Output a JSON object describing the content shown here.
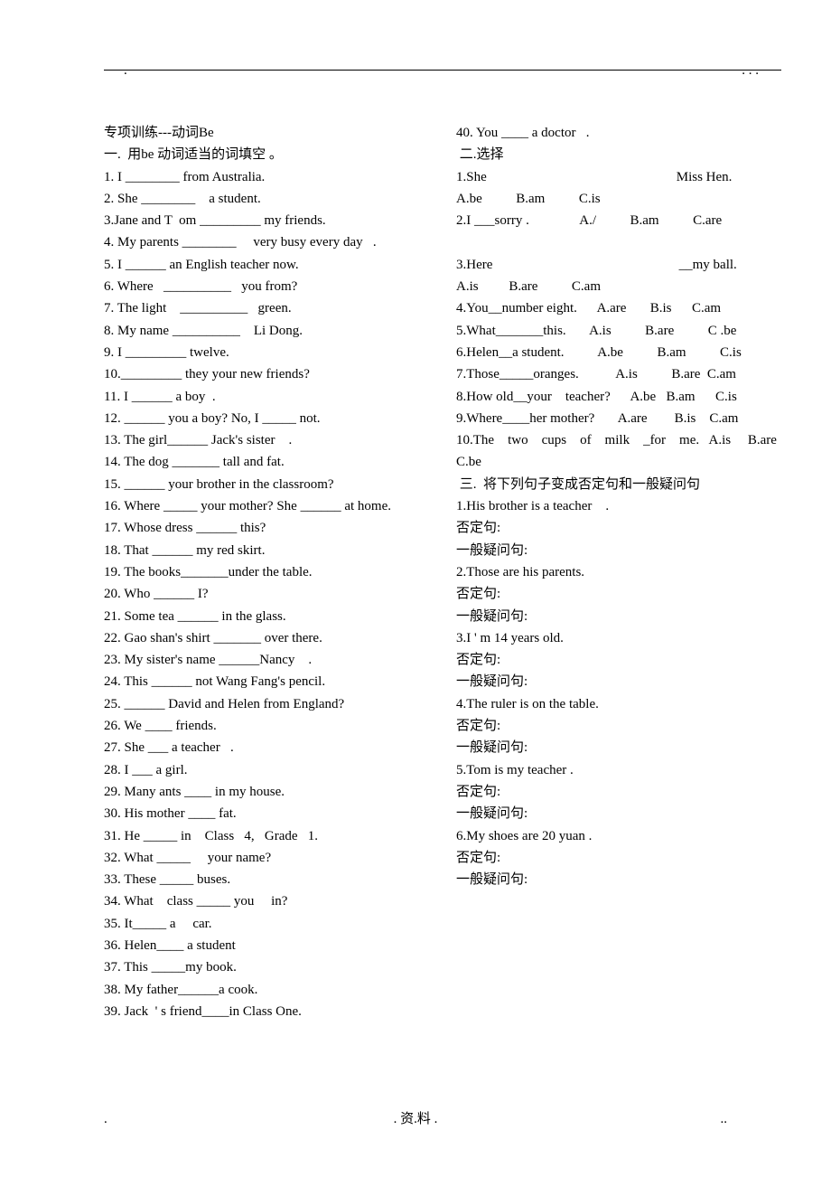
{
  "header": {
    "dot_left": ".",
    "dot_right": ".   . ."
  },
  "left_column": {
    "title": "专项训练---动词Be",
    "section1_title": "一.  用be 动词适当的词填空 。",
    "items": [
      "1. I ________ from Australia.",
      "2. She ________    a student.",
      "3.Jane and T  om _________ my friends.",
      "4. My parents ________     very busy every day   .",
      "5. I ______ an English teacher now.",
      "6. Where   __________   you from?",
      "7. The light    __________   green.",
      "8. My name __________    Li Dong.",
      "9. I _________ twelve.",
      "10._________ they your new friends?",
      "11. I ______ a boy  .",
      "12. ______ you a boy? No, I _____ not.",
      "13. The girl______ Jack's sister    .",
      "14. The dog _______ tall and fat.",
      "15. ______ your brother in the classroom?",
      "16. Where _____ your mother? She ______ at home.",
      "17. Whose dress ______ this?",
      "18. That ______ my red skirt.",
      "19. The books_______under the table.",
      "20. Who ______ I?",
      "21. Some tea ______ in the glass.",
      "22. Gao shan's shirt _______ over there.",
      "23. My sister's name ______Nancy    .",
      "24. This ______ not Wang Fang's pencil.",
      "25. ______ David and Helen from England?",
      "26. We ____ friends.",
      "27. She ___ a teacher   .",
      "28. I ___ a girl.",
      "29. Many ants ____ in my house.",
      "30. His mother ____ fat.",
      "31. He _____ in    Class   4,   Grade   1.",
      "32. What _____     your name?",
      "33. These _____ buses.",
      "34. What    class _____ you     in?",
      "35. It_____ a     car.",
      "36. Helen____ a student",
      "37. This _____my book.",
      "38. My father______a cook.",
      "39. Jack  ' s friend____in Class One."
    ]
  },
  "right_column": {
    "item40": "40. You ____ a doctor   .",
    "section2_title": " 二.选择",
    "section2_items": [
      "1.She                                                        Miss Hen.          A.be          B.am          C.is",
      "2.I ___sorry .               A./          B.am          C.are",
      "",
      "3.Here                                                       __my ball.         A.is         B.are          C.am",
      "4.You__number eight.      A.are       B.is      C.am",
      "5.What_______this.       A.is          B.are          C .be",
      "6.Helen__a student.          A.be          B.am          C.is",
      "7.Those_____oranges.           A.is          B.are  C.am",
      "8.How old__your    teacher?      A.be   B.am      C.is",
      "9.Where____her mother?       A.are        B.is    C.am",
      "10.The    two    cups    of    milk    _for    me.   A.is     B.are        C.be"
    ],
    "section3_title": " 三.  将下列句子变成否定句和一般疑问句",
    "section3_items": [
      "1.His brother is a teacher    .",
      "否定句:",
      "一般疑问句:",
      "2.Those are his parents.",
      "否定句:",
      "一般疑问句:",
      "3.I ' m 14 years old.",
      "否定句:",
      "一般疑问句:",
      "4.The ruler is on the table.",
      "否定句:",
      "一般疑问句:",
      "5.Tom is my teacher .",
      "否定句:",
      "一般疑问句:",
      "6.My shoes are 20 yuan .",
      "否定句:",
      "一般疑问句:"
    ]
  },
  "footer": {
    "left_dot": ".",
    "center": ". 资.料 .",
    "right_dot": ".."
  }
}
